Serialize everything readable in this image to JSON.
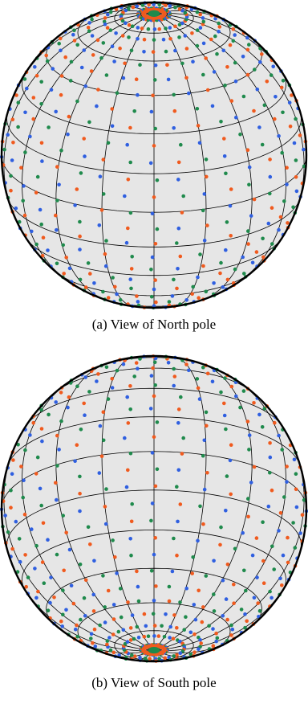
{
  "panels": [
    {
      "id": "a",
      "label": "(a)",
      "caption": "View of North pole",
      "pole": "north"
    },
    {
      "id": "b",
      "label": "(b)",
      "caption": "View of South pole",
      "pole": "south"
    }
  ],
  "colors": {
    "sphere_fill": "#e6e6e6",
    "outline": "#000000",
    "grid": "#000000",
    "marker_green": "#1f8a4c",
    "marker_blue": "#2f5fe0",
    "marker_orange": "#f05a1e"
  }
}
